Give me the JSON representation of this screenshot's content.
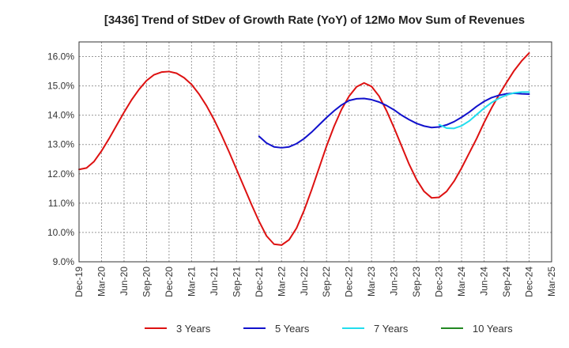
{
  "chart_data": {
    "type": "line",
    "title": "[3436]  Trend of StDev of Growth Rate (YoY) of 12Mo Mov Sum of Revenues",
    "xlabel": "",
    "ylabel": "",
    "x_ticks": [
      "Dec-19",
      "Mar-20",
      "Jun-20",
      "Sep-20",
      "Dec-20",
      "Mar-21",
      "Jun-21",
      "Sep-21",
      "Dec-21",
      "Mar-22",
      "Jun-22",
      "Sep-22",
      "Dec-22",
      "Mar-23",
      "Jun-23",
      "Sep-23",
      "Dec-23",
      "Mar-24",
      "Jun-24",
      "Sep-24",
      "Dec-24",
      "Mar-25"
    ],
    "y_ticks": [
      "9.0%",
      "10.0%",
      "11.0%",
      "12.0%",
      "13.0%",
      "14.0%",
      "15.0%",
      "16.0%"
    ],
    "ylim": [
      9.0,
      16.5
    ],
    "grid": true,
    "series": [
      {
        "name": "3 Years",
        "color": "#dd1111",
        "x": [
          0,
          1,
          2,
          3,
          4,
          5,
          6,
          7,
          8,
          9,
          10,
          11,
          12,
          13,
          14,
          15,
          16,
          17,
          18,
          19,
          20,
          21,
          22,
          23,
          24,
          25,
          26,
          27,
          28,
          29,
          30,
          31,
          32,
          33,
          34,
          35,
          36,
          37,
          38,
          39,
          40,
          41,
          42,
          43,
          44,
          45,
          46,
          47,
          48,
          49,
          50,
          51,
          52,
          53,
          54,
          55,
          56,
          57,
          58,
          59,
          60
        ],
        "values": [
          12.15,
          12.2,
          12.42,
          12.78,
          13.2,
          13.65,
          14.1,
          14.52,
          14.88,
          15.18,
          15.38,
          15.47,
          15.49,
          15.43,
          15.28,
          15.05,
          14.72,
          14.32,
          13.85,
          13.32,
          12.75,
          12.15,
          11.55,
          10.95,
          10.38,
          9.88,
          9.6,
          9.57,
          9.75,
          10.15,
          10.75,
          11.45,
          12.2,
          12.95,
          13.62,
          14.2,
          14.65,
          14.97,
          15.1,
          14.98,
          14.65,
          14.15,
          13.57,
          12.95,
          12.33,
          11.8,
          11.4,
          11.18,
          11.2,
          11.4,
          11.75,
          12.2,
          12.7,
          13.2,
          13.75,
          14.25,
          14.7,
          15.12,
          15.52,
          15.85,
          16.12
        ]
      },
      {
        "name": "5 Years",
        "color": "#1111cc",
        "x": [
          24,
          25,
          26,
          27,
          28,
          29,
          30,
          31,
          32,
          33,
          34,
          35,
          36,
          37,
          38,
          39,
          40,
          41,
          42,
          43,
          44,
          45,
          46,
          47,
          48,
          49,
          50,
          51,
          52,
          53,
          54,
          55,
          56,
          57,
          58,
          59,
          60
        ],
        "values": [
          13.28,
          13.05,
          12.92,
          12.89,
          12.92,
          13.03,
          13.2,
          13.42,
          13.67,
          13.92,
          14.15,
          14.35,
          14.5,
          14.56,
          14.57,
          14.53,
          14.45,
          14.33,
          14.18,
          14.0,
          13.85,
          13.72,
          13.63,
          13.58,
          13.6,
          13.67,
          13.78,
          13.93,
          14.1,
          14.3,
          14.47,
          14.6,
          14.68,
          14.73,
          14.75,
          14.73,
          14.72
        ]
      },
      {
        "name": "7 Years",
        "color": "#22ddee",
        "x": [
          48,
          49,
          50,
          51,
          52,
          53,
          54,
          55,
          56,
          57,
          58,
          59,
          60
        ],
        "values": [
          13.68,
          13.56,
          13.55,
          13.64,
          13.8,
          14.02,
          14.24,
          14.43,
          14.58,
          14.69,
          14.76,
          14.79,
          14.79
        ]
      },
      {
        "name": "10 Years",
        "color": "#228822",
        "x": [],
        "values": []
      }
    ]
  }
}
